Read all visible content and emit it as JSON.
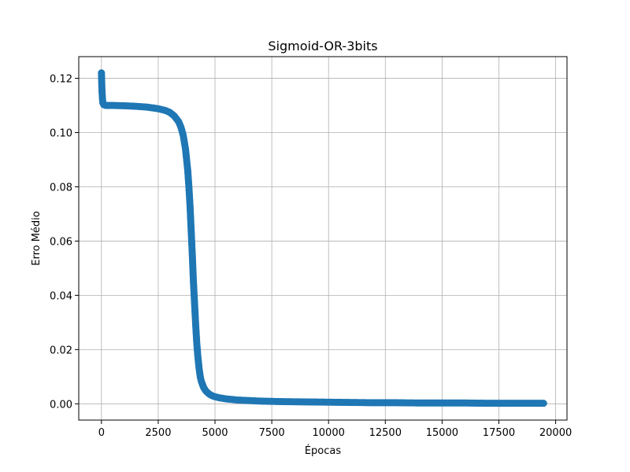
{
  "chart_data": {
    "type": "scatter",
    "title": "Sigmoid-OR-3bits",
    "xlabel": "Épocas",
    "ylabel": "Erro Médio",
    "xlim": [
      -1000,
      20500
    ],
    "ylim": [
      -0.006,
      0.128
    ],
    "xticks": [
      0,
      2500,
      5000,
      7500,
      10000,
      12500,
      15000,
      17500,
      20000
    ],
    "yticks": [
      0.0,
      0.02,
      0.04,
      0.06,
      0.08,
      0.1,
      0.12
    ],
    "xtick_labels": [
      "0",
      "2500",
      "5000",
      "7500",
      "10000",
      "12500",
      "15000",
      "17500",
      "20000"
    ],
    "ytick_labels": [
      "0.00",
      "0.02",
      "0.04",
      "0.06",
      "0.08",
      "0.10",
      "0.12"
    ],
    "grid": true,
    "marker_color": "#1f77b4",
    "series": [
      {
        "x": [
          0,
          10,
          20,
          40,
          60,
          100,
          150,
          200,
          300,
          500,
          1000,
          1500,
          2000,
          2500,
          2800,
          3000,
          3200,
          3400,
          3500,
          3600,
          3700,
          3800,
          3850,
          3900,
          3950,
          4000,
          4050,
          4100,
          4150,
          4200,
          4250,
          4300,
          4350,
          4400,
          4500,
          4600,
          4700,
          4800,
          4900,
          5000,
          5200,
          5500,
          6000,
          6500,
          7000,
          8000,
          9000,
          10000,
          11000,
          12000,
          13000,
          14000,
          15000,
          16000,
          17000,
          18000,
          19000,
          19470
        ],
        "y": [
          0.122,
          0.119,
          0.116,
          0.113,
          0.111,
          0.1103,
          0.1101,
          0.11,
          0.11,
          0.11,
          0.1099,
          0.1097,
          0.1094,
          0.1088,
          0.1082,
          0.1075,
          0.1062,
          0.104,
          0.102,
          0.099,
          0.094,
          0.086,
          0.08,
          0.073,
          0.064,
          0.055,
          0.045,
          0.037,
          0.029,
          0.022,
          0.017,
          0.013,
          0.01,
          0.0082,
          0.006,
          0.0047,
          0.0039,
          0.0033,
          0.0029,
          0.0026,
          0.0022,
          0.0018,
          0.0014,
          0.0012,
          0.001,
          0.0008,
          0.0007,
          0.0006,
          0.0005,
          0.0004,
          0.0004,
          0.0003,
          0.0003,
          0.0003,
          0.0002,
          0.0002,
          0.0002,
          0.0002
        ]
      }
    ]
  }
}
